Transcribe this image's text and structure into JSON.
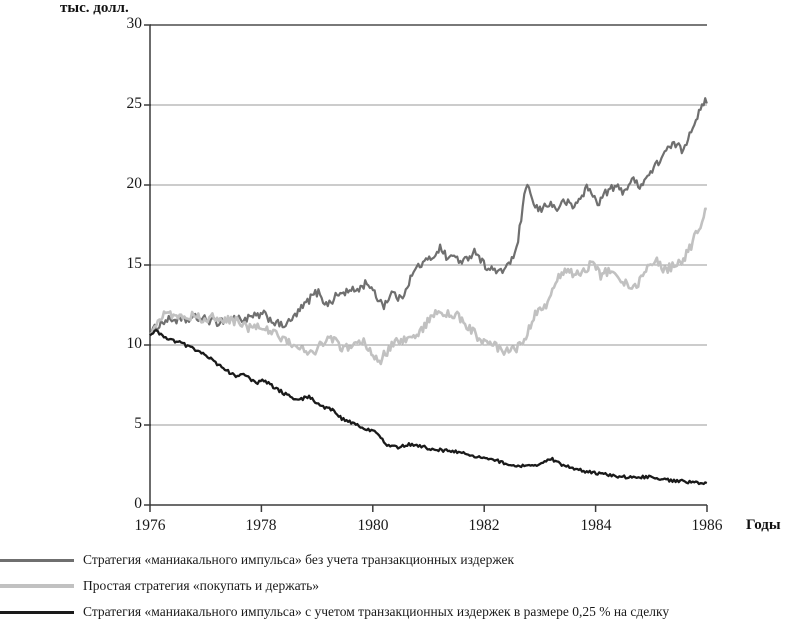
{
  "title": "тыс. долл.",
  "x_axis_title": "Годы",
  "colors": {
    "axis": "#3c3c3c",
    "grid": "#999999",
    "top_border": "#4d4d4d",
    "text": "#1a1a1a"
  },
  "chart_data": {
    "type": "line",
    "title": "тыс. долл.",
    "xlabel": "Годы",
    "ylabel": "тыс. долл.",
    "xlim": [
      1976,
      1986
    ],
    "ylim": [
      0,
      30
    ],
    "x_ticks": [
      1976,
      1978,
      1980,
      1982,
      1984,
      1986
    ],
    "y_ticks": [
      0,
      5,
      10,
      15,
      20,
      25,
      30
    ],
    "grid": "horizontal",
    "legend_position": "bottom-left",
    "series": [
      {
        "name": "Стратегия «маниакального импульса» без учета транзакционных издержек",
        "color": "#6f6f6f",
        "stroke_width": 2.2,
        "noise": 0.26,
        "points": [
          [
            1976.0,
            10.6
          ],
          [
            1976.1,
            11.1
          ],
          [
            1976.25,
            11.5
          ],
          [
            1976.4,
            11.6
          ],
          [
            1976.6,
            11.5
          ],
          [
            1976.8,
            11.7
          ],
          [
            1977.0,
            11.6
          ],
          [
            1977.2,
            11.4
          ],
          [
            1977.35,
            11.6
          ],
          [
            1977.5,
            11.7
          ],
          [
            1977.7,
            11.6
          ],
          [
            1977.9,
            11.8
          ],
          [
            1978.05,
            11.9
          ],
          [
            1978.2,
            11.5
          ],
          [
            1978.35,
            11.2
          ],
          [
            1978.5,
            11.4
          ],
          [
            1978.65,
            12.0
          ],
          [
            1978.8,
            12.6
          ],
          [
            1978.95,
            13.2
          ],
          [
            1979.05,
            13.3
          ],
          [
            1979.15,
            12.5
          ],
          [
            1979.25,
            12.7
          ],
          [
            1979.35,
            13.1
          ],
          [
            1979.5,
            13.3
          ],
          [
            1979.65,
            13.4
          ],
          [
            1979.8,
            13.6
          ],
          [
            1979.9,
            14.0
          ],
          [
            1980.0,
            13.3
          ],
          [
            1980.2,
            12.5
          ],
          [
            1980.35,
            13.3
          ],
          [
            1980.5,
            12.8
          ],
          [
            1980.65,
            14.0
          ],
          [
            1980.8,
            14.9
          ],
          [
            1980.95,
            15.2
          ],
          [
            1981.1,
            15.6
          ],
          [
            1981.2,
            16.1
          ],
          [
            1981.35,
            15.4
          ],
          [
            1981.5,
            15.6
          ],
          [
            1981.6,
            15.0
          ],
          [
            1981.7,
            15.5
          ],
          [
            1981.85,
            15.9
          ],
          [
            1982.0,
            15.0
          ],
          [
            1982.15,
            14.7
          ],
          [
            1982.3,
            14.5
          ],
          [
            1982.45,
            15.2
          ],
          [
            1982.55,
            15.5
          ],
          [
            1982.65,
            17.5
          ],
          [
            1982.72,
            19.2
          ],
          [
            1982.8,
            20.1
          ],
          [
            1982.88,
            18.7
          ],
          [
            1983.0,
            18.4
          ],
          [
            1983.15,
            18.9
          ],
          [
            1983.3,
            18.5
          ],
          [
            1983.45,
            19.0
          ],
          [
            1983.6,
            18.6
          ],
          [
            1983.75,
            19.3
          ],
          [
            1983.85,
            19.9
          ],
          [
            1983.95,
            19.3
          ],
          [
            1984.05,
            18.9
          ],
          [
            1984.2,
            19.6
          ],
          [
            1984.35,
            19.9
          ],
          [
            1984.5,
            19.6
          ],
          [
            1984.65,
            20.3
          ],
          [
            1984.8,
            20.0
          ],
          [
            1984.95,
            20.6
          ],
          [
            1985.1,
            21.3
          ],
          [
            1985.25,
            22.1
          ],
          [
            1985.45,
            22.6
          ],
          [
            1985.55,
            22.1
          ],
          [
            1985.7,
            23.3
          ],
          [
            1985.8,
            24.2
          ],
          [
            1985.9,
            24.7
          ],
          [
            1985.97,
            25.3
          ],
          [
            1986.0,
            25.1
          ]
        ]
      },
      {
        "name": "Простая стратегия «покупать и держать»",
        "color": "#c1c1c1",
        "stroke_width": 2.6,
        "noise": 0.3,
        "points": [
          [
            1976.0,
            10.7
          ],
          [
            1976.15,
            11.7
          ],
          [
            1976.3,
            12.1
          ],
          [
            1976.45,
            11.8
          ],
          [
            1976.6,
            11.9
          ],
          [
            1976.8,
            11.8
          ],
          [
            1977.0,
            11.6
          ],
          [
            1977.2,
            11.8
          ],
          [
            1977.4,
            11.6
          ],
          [
            1977.6,
            11.4
          ],
          [
            1977.8,
            11.0
          ],
          [
            1977.95,
            11.2
          ],
          [
            1978.1,
            10.9
          ],
          [
            1978.3,
            10.6
          ],
          [
            1978.5,
            10.2
          ],
          [
            1978.7,
            9.8
          ],
          [
            1978.9,
            9.4
          ],
          [
            1979.05,
            10.1
          ],
          [
            1979.2,
            10.4
          ],
          [
            1979.35,
            10.2
          ],
          [
            1979.5,
            9.7
          ],
          [
            1979.65,
            10.1
          ],
          [
            1979.8,
            10.3
          ],
          [
            1979.95,
            9.6
          ],
          [
            1980.1,
            8.9
          ],
          [
            1980.25,
            9.6
          ],
          [
            1980.4,
            10.2
          ],
          [
            1980.55,
            10.4
          ],
          [
            1980.7,
            10.2
          ],
          [
            1980.85,
            10.8
          ],
          [
            1981.0,
            11.6
          ],
          [
            1981.15,
            12.1
          ],
          [
            1981.3,
            11.9
          ],
          [
            1981.45,
            12.0
          ],
          [
            1981.6,
            11.5
          ],
          [
            1981.75,
            11.0
          ],
          [
            1981.9,
            10.4
          ],
          [
            1982.05,
            10.1
          ],
          [
            1982.2,
            9.9
          ],
          [
            1982.35,
            9.5
          ],
          [
            1982.5,
            9.7
          ],
          [
            1982.65,
            9.9
          ],
          [
            1982.8,
            11.0
          ],
          [
            1982.95,
            12.2
          ],
          [
            1983.05,
            12.1
          ],
          [
            1983.2,
            13.2
          ],
          [
            1983.35,
            14.3
          ],
          [
            1983.5,
            14.7
          ],
          [
            1983.65,
            14.4
          ],
          [
            1983.8,
            14.8
          ],
          [
            1983.95,
            15.0
          ],
          [
            1984.1,
            14.3
          ],
          [
            1984.25,
            14.7
          ],
          [
            1984.4,
            14.3
          ],
          [
            1984.55,
            13.8
          ],
          [
            1984.65,
            13.3
          ],
          [
            1984.8,
            14.1
          ],
          [
            1984.95,
            14.9
          ],
          [
            1985.1,
            15.2
          ],
          [
            1985.25,
            14.7
          ],
          [
            1985.4,
            15.0
          ],
          [
            1985.55,
            15.2
          ],
          [
            1985.7,
            16.1
          ],
          [
            1985.8,
            16.9
          ],
          [
            1985.9,
            17.7
          ],
          [
            1986.0,
            18.6
          ]
        ]
      },
      {
        "name": "Стратегия «маниакального импульса» с учетом транзакционных издержек в размере 0,25 % на сделку",
        "color": "#1a1a1a",
        "stroke_width": 2.3,
        "noise": 0.1,
        "points": [
          [
            1976.0,
            10.6
          ],
          [
            1976.1,
            10.9
          ],
          [
            1976.3,
            10.4
          ],
          [
            1976.5,
            10.2
          ],
          [
            1976.7,
            9.9
          ],
          [
            1976.9,
            9.6
          ],
          [
            1977.1,
            9.1
          ],
          [
            1977.3,
            8.6
          ],
          [
            1977.5,
            8.1
          ],
          [
            1977.7,
            8.1
          ],
          [
            1977.9,
            7.6
          ],
          [
            1978.05,
            7.8
          ],
          [
            1978.25,
            7.3
          ],
          [
            1978.45,
            6.9
          ],
          [
            1978.65,
            6.5
          ],
          [
            1978.85,
            6.8
          ],
          [
            1979.05,
            6.2
          ],
          [
            1979.25,
            6.0
          ],
          [
            1979.45,
            5.4
          ],
          [
            1979.65,
            5.1
          ],
          [
            1979.85,
            4.8
          ],
          [
            1980.05,
            4.6
          ],
          [
            1980.25,
            3.7
          ],
          [
            1980.45,
            3.6
          ],
          [
            1980.65,
            3.8
          ],
          [
            1980.85,
            3.7
          ],
          [
            1981.05,
            3.5
          ],
          [
            1981.3,
            3.4
          ],
          [
            1981.6,
            3.3
          ],
          [
            1981.9,
            3.0
          ],
          [
            1982.2,
            2.8
          ],
          [
            1982.5,
            2.5
          ],
          [
            1982.8,
            2.4
          ],
          [
            1983.0,
            2.5
          ],
          [
            1983.2,
            2.9
          ],
          [
            1983.4,
            2.5
          ],
          [
            1983.7,
            2.2
          ],
          [
            1984.0,
            2.0
          ],
          [
            1984.35,
            1.8
          ],
          [
            1984.7,
            1.7
          ],
          [
            1985.0,
            1.8
          ],
          [
            1985.2,
            1.6
          ],
          [
            1985.5,
            1.5
          ],
          [
            1985.8,
            1.4
          ],
          [
            1985.95,
            1.3
          ],
          [
            1986.0,
            1.4
          ]
        ]
      }
    ]
  }
}
